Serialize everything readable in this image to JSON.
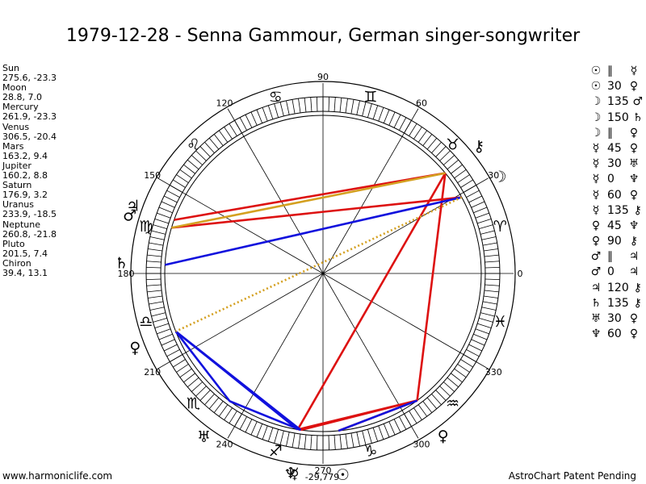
{
  "title": "1979-12-28 - Senna Gammour, German singer-songwriter",
  "footer": {
    "left": "www.harmoniclife.com",
    "right": "AstroChart Patent Pending"
  },
  "positions": [
    {
      "name": "Sun",
      "values": "275.6, -23.3"
    },
    {
      "name": "Moon",
      "values": "28.8, 7.0"
    },
    {
      "name": "Mercury",
      "values": "261.9, -23.3"
    },
    {
      "name": "Venus",
      "values": "306.5, -20.4"
    },
    {
      "name": "Mars",
      "values": "163.2, 9.4"
    },
    {
      "name": "Jupiter",
      "values": "160.2, 8.8"
    },
    {
      "name": "Saturn",
      "values": "176.9, 3.2"
    },
    {
      "name": "Uranus",
      "values": "233.9, -18.5"
    },
    {
      "name": "Neptune",
      "values": "260.8, -21.8"
    },
    {
      "name": "Pluto",
      "values": "201.5, 7.4"
    },
    {
      "name": "Chiron",
      "values": "39.4, 13.1"
    }
  ],
  "aspects": [
    {
      "p1": "☉",
      "aspect": "∥",
      "p2": "☿"
    },
    {
      "p1": "☉",
      "aspect": "30",
      "p2": "♀"
    },
    {
      "p1": "☽",
      "aspect": "135",
      "p2": "♂"
    },
    {
      "p1": "☽",
      "aspect": "150",
      "p2": "♄"
    },
    {
      "p1": "☽",
      "aspect": "∥",
      "p2": "♀"
    },
    {
      "p1": "☿",
      "aspect": "45",
      "p2": "♀"
    },
    {
      "p1": "☿",
      "aspect": "30",
      "p2": "♅"
    },
    {
      "p1": "☿",
      "aspect": "0",
      "p2": "♆"
    },
    {
      "p1": "☿",
      "aspect": "60",
      "p2": "♀"
    },
    {
      "p1": "☿",
      "aspect": "135",
      "p2": "⚷"
    },
    {
      "p1": "♀",
      "aspect": "45",
      "p2": "♆"
    },
    {
      "p1": "♀",
      "aspect": "90",
      "p2": "⚷"
    },
    {
      "p1": "♂",
      "aspect": "∥",
      "p2": "♃"
    },
    {
      "p1": "♂",
      "aspect": "0",
      "p2": "♃"
    },
    {
      "p1": "♃",
      "aspect": "120",
      "p2": "⚷"
    },
    {
      "p1": "♄",
      "aspect": "135",
      "p2": "⚷"
    },
    {
      "p1": "♅",
      "aspect": "30",
      "p2": "♀"
    },
    {
      "p1": "♆",
      "aspect": "60",
      "p2": "♀"
    }
  ],
  "wheel": {
    "degree_labels": [
      "0",
      "30",
      "60",
      "90",
      "120",
      "150",
      "180",
      "210",
      "240",
      "270",
      "300",
      "330"
    ],
    "zodiac": [
      {
        "sign": "aries",
        "glyph": "♈"
      },
      {
        "sign": "taurus",
        "glyph": "♉"
      },
      {
        "sign": "gemini",
        "glyph": "♊"
      },
      {
        "sign": "cancer",
        "glyph": "♋"
      },
      {
        "sign": "leo",
        "glyph": "♌"
      },
      {
        "sign": "virgo",
        "glyph": "♍"
      },
      {
        "sign": "libra",
        "glyph": "♎"
      },
      {
        "sign": "scorpio",
        "glyph": "♏"
      },
      {
        "sign": "sagittarius",
        "glyph": "♐"
      },
      {
        "sign": "capricorn",
        "glyph": "♑"
      },
      {
        "sign": "aquarius",
        "glyph": "♒"
      },
      {
        "sign": "pisces",
        "glyph": "♓"
      }
    ],
    "planets": [
      {
        "name": "sun",
        "glyph": "☉",
        "lon": 275.6
      },
      {
        "name": "moon",
        "glyph": "☽",
        "lon": 28.8
      },
      {
        "name": "mercury",
        "glyph": "☿",
        "lon": 261.9
      },
      {
        "name": "venus",
        "glyph": "♀",
        "lon": 306.5
      },
      {
        "name": "mars",
        "glyph": "♂",
        "lon": 163.2
      },
      {
        "name": "jupiter",
        "glyph": "♃",
        "lon": 160.2
      },
      {
        "name": "saturn",
        "glyph": "♄",
        "lon": 176.9
      },
      {
        "name": "uranus",
        "glyph": "♅",
        "lon": 233.9
      },
      {
        "name": "neptune",
        "glyph": "♆",
        "lon": 260.8
      },
      {
        "name": "pluto",
        "glyph": "♀",
        "lon": 201.5
      },
      {
        "name": "chiron",
        "glyph": "⚷",
        "lon": 39.4
      }
    ],
    "lunar_node_label": "-29,779",
    "aspect_lines": [
      {
        "from": "sun",
        "to": "venus",
        "color": "#dd1111",
        "style": "solid"
      },
      {
        "from": "mercury",
        "to": "venus",
        "color": "#dd1111",
        "style": "solid"
      },
      {
        "from": "neptune",
        "to": "venus",
        "color": "#dd1111",
        "style": "solid"
      },
      {
        "from": "venus",
        "to": "chiron",
        "color": "#dd1111",
        "style": "solid"
      },
      {
        "from": "neptune",
        "to": "chiron",
        "color": "#dd1111",
        "style": "solid"
      },
      {
        "from": "moon",
        "to": "mars",
        "color": "#dd1111",
        "style": "solid"
      },
      {
        "from": "chiron",
        "to": "jupiter",
        "color": "#dd1111",
        "style": "solid"
      },
      {
        "from": "chiron",
        "to": "mars",
        "color": "#d4a020",
        "style": "solid"
      },
      {
        "from": "moon",
        "to": "saturn",
        "color": "#1111dd",
        "style": "solid"
      },
      {
        "from": "mercury",
        "to": "pluto",
        "color": "#1111dd",
        "style": "solid"
      },
      {
        "from": "neptune",
        "to": "pluto",
        "color": "#1111dd",
        "style": "solid"
      },
      {
        "from": "mercury",
        "to": "uranus",
        "color": "#1111dd",
        "style": "solid"
      },
      {
        "from": "uranus",
        "to": "pluto",
        "color": "#1111dd",
        "style": "solid"
      },
      {
        "from": "sun",
        "to": "venus",
        "color": "#1111dd",
        "style": "solid"
      },
      {
        "from": "moon",
        "to": "pluto",
        "color": "#d4a020",
        "style": "dotted"
      }
    ]
  }
}
